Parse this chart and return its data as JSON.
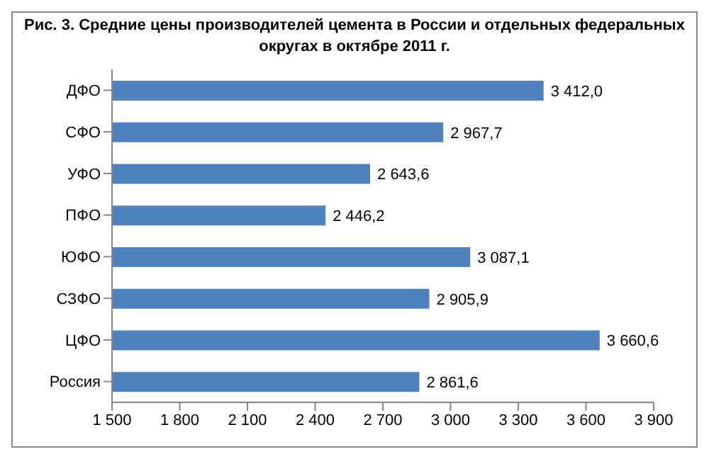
{
  "chart_data": {
    "type": "bar",
    "orientation": "horizontal",
    "title": "Рис. 3. Средние цены производителей цемента в России и отдельных федеральных округах в октябре 2011 г.",
    "categories": [
      "ДФО",
      "СФО",
      "УФО",
      "ПФО",
      "ЮФО",
      "СЗФО",
      "ЦФО",
      "Россия"
    ],
    "values": [
      3412.0,
      2967.7,
      2643.6,
      2446.2,
      3087.1,
      2905.9,
      3660.6,
      2861.6
    ],
    "value_labels": [
      "3 412,0",
      "2 967,7",
      "2 643,6",
      "2 446,2",
      "3 087,1",
      "2 905,9",
      "3 660,6",
      "2 861,6"
    ],
    "color": "#4f81bd",
    "xlim": [
      1500,
      3900
    ],
    "xticks": [
      {
        "value": 1500,
        "label": "1 500"
      },
      {
        "value": 1800,
        "label": "1 800"
      },
      {
        "value": 2100,
        "label": "2 100"
      },
      {
        "value": 2400,
        "label": "2 400"
      },
      {
        "value": 2700,
        "label": "2 700"
      },
      {
        "value": 3000,
        "label": "3 000"
      },
      {
        "value": 3300,
        "label": "3 300"
      },
      {
        "value": 3600,
        "label": "3 600"
      },
      {
        "value": 3900,
        "label": "3 900"
      }
    ]
  }
}
